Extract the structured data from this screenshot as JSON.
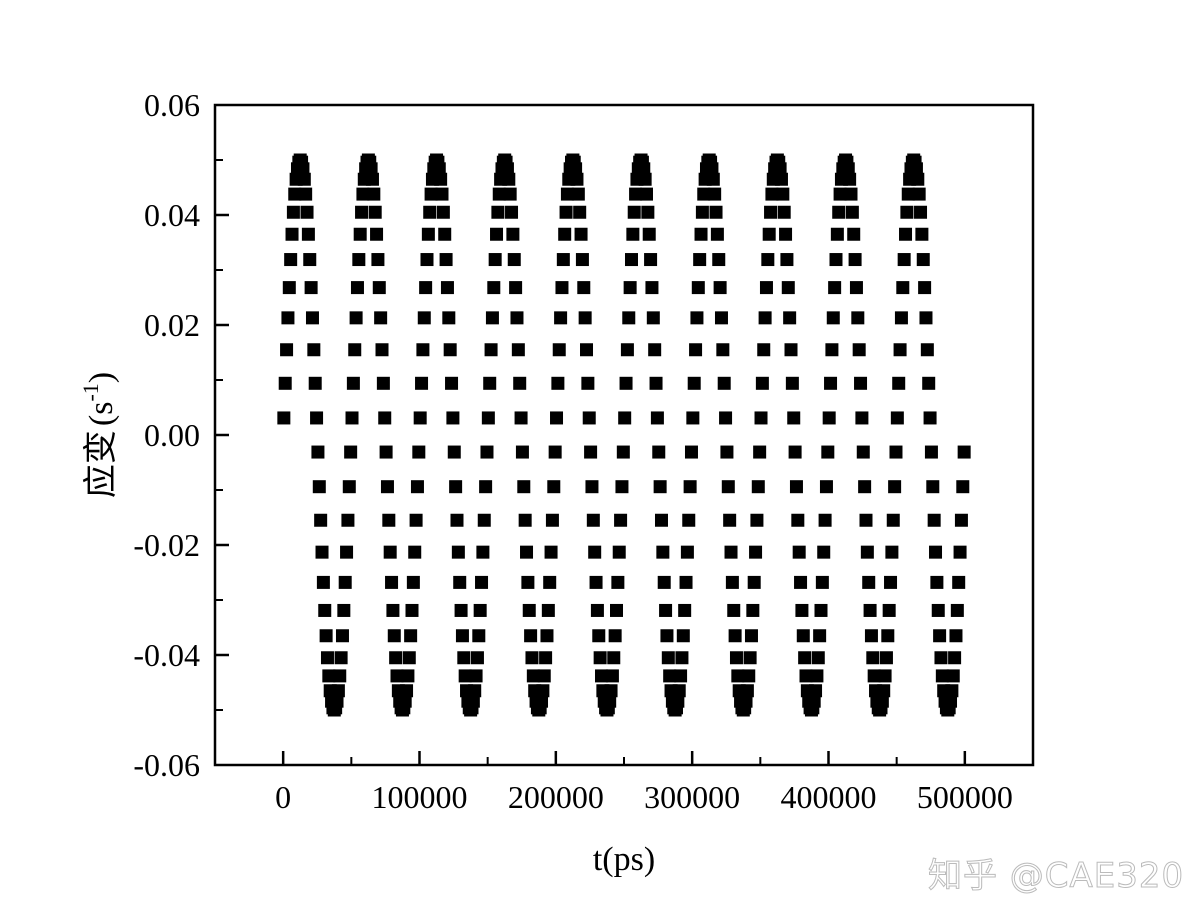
{
  "chart_data": {
    "type": "scatter",
    "title": "",
    "xlabel": "t(ps)",
    "ylabel": "应变",
    "ylabel_unit": "(s",
    "ylabel_unit_sup": "-1",
    "ylabel_unit_close": ")",
    "xlim": [
      -50000,
      550000
    ],
    "ylim": [
      -0.06,
      0.06
    ],
    "xticks": [
      0,
      100000,
      200000,
      300000,
      400000,
      500000
    ],
    "xtick_labels": [
      "0",
      "100000",
      "200000",
      "300000",
      "400000",
      "500000"
    ],
    "yticks": [
      0.06,
      0.04,
      0.02,
      0.0,
      -0.02,
      -0.04,
      -0.06
    ],
    "ytick_labels": [
      "0.06",
      "0.04",
      "0.02",
      "0.00",
      "-0.02",
      "-0.04",
      "-0.06"
    ],
    "grid": false,
    "marker": "square",
    "marker_color": "#000000",
    "series": [
      {
        "x": [
          500,
          1500,
          2500,
          3500,
          4500,
          5500,
          6500,
          7500,
          8500,
          9500,
          10500,
          11500,
          12500,
          13500,
          14500,
          15500,
          16500,
          17500,
          18500,
          19500,
          20500,
          21500,
          22500,
          23500,
          24500,
          25500,
          26500,
          27500,
          28500,
          29500,
          30500,
          31500,
          32500,
          33500,
          34500,
          35500,
          36500,
          37500,
          38500,
          39500,
          40500,
          41500,
          42500,
          43500,
          44500,
          45500,
          46500,
          47500,
          48500,
          49500,
          50500,
          51500,
          52500,
          53500,
          54500,
          55500,
          56500,
          57500,
          58500,
          59500,
          60500,
          61500,
          62500,
          63500,
          64500,
          65500,
          66500,
          67500,
          68500,
          69500,
          70500,
          71500,
          72500,
          73500,
          74500,
          75500,
          76500,
          77500,
          78500,
          79500,
          80500,
          81500,
          82500,
          83500,
          84500,
          85500,
          86500,
          87500,
          88500,
          89500,
          90500,
          91500,
          92500,
          93500,
          94500,
          95500,
          96500,
          97500,
          98500,
          99500,
          100500,
          101500,
          102500,
          103500,
          104500,
          105500,
          106500,
          107500,
          108500,
          109500,
          110500,
          111500,
          112500,
          113500,
          114500,
          115500,
          116500,
          117500,
          118500,
          119500,
          120500,
          121500,
          122500,
          123500,
          124500,
          125500,
          126500,
          127500,
          128500,
          129500,
          130500,
          131500,
          132500,
          133500,
          134500,
          135500,
          136500,
          137500,
          138500,
          139500,
          140500,
          141500,
          142500,
          143500,
          144500,
          145500,
          146500,
          147500,
          148500,
          149500,
          150500,
          151500,
          152500,
          153500,
          154500,
          155500,
          156500,
          157500,
          158500,
          159500,
          160500,
          161500,
          162500,
          163500,
          164500,
          165500,
          166500,
          167500,
          168500,
          169500,
          170500,
          171500,
          172500,
          173500,
          174500,
          175500,
          176500,
          177500,
          178500,
          179500,
          180500,
          181500,
          182500,
          183500,
          184500,
          185500,
          186500,
          187500,
          188500,
          189500,
          190500,
          191500,
          192500,
          193500,
          194500,
          195500,
          196500,
          197500,
          198500,
          199500,
          200500,
          201500,
          202500,
          203500,
          204500,
          205500,
          206500,
          207500,
          208500,
          209500,
          210500,
          211500,
          212500,
          213500,
          214500,
          215500,
          216500,
          217500,
          218500,
          219500,
          220500,
          221500,
          222500,
          223500,
          224500,
          225500,
          226500,
          227500,
          228500,
          229500,
          230500,
          231500,
          232500,
          233500,
          234500,
          235500,
          236500,
          237500,
          238500,
          239500,
          240500,
          241500,
          242500,
          243500,
          244500,
          245500,
          246500,
          247500,
          248500,
          249500,
          250500,
          251500,
          252500,
          253500,
          254500,
          255500,
          256500,
          257500,
          258500,
          259500,
          260500,
          261500,
          262500,
          263500,
          264500,
          265500,
          266500,
          267500,
          268500,
          269500,
          270500,
          271500,
          272500,
          273500,
          274500,
          275500,
          276500,
          277500,
          278500,
          279500,
          280500,
          281500,
          282500,
          283500,
          284500,
          285500,
          286500,
          287500,
          288500,
          289500,
          290500,
          291500,
          292500,
          293500,
          294500,
          295500,
          296500,
          297500,
          298500,
          299500,
          300500,
          301500,
          302500,
          303500,
          304500,
          305500,
          306500,
          307500,
          308500,
          309500,
          310500,
          311500,
          312500,
          313500,
          314500,
          315500,
          316500,
          317500,
          318500,
          319500,
          320500,
          321500,
          322500,
          323500,
          324500,
          325500,
          326500,
          327500,
          328500,
          329500,
          330500,
          331500,
          332500,
          333500,
          334500,
          335500,
          336500,
          337500,
          338500,
          339500,
          340500,
          341500,
          342500,
          343500,
          344500,
          345500,
          346500,
          347500,
          348500,
          349500,
          350500,
          351500,
          352500,
          353500,
          354500,
          355500,
          356500,
          357500,
          358500,
          359500,
          360500,
          361500,
          362500,
          363500,
          364500,
          365500,
          366500,
          367500,
          368500,
          369500,
          370500,
          371500,
          372500,
          373500,
          374500,
          375500,
          376500,
          377500,
          378500,
          379500,
          380500,
          381500,
          382500,
          383500,
          384500,
          385500,
          386500,
          387500,
          388500,
          389500,
          390500,
          391500,
          392500,
          393500,
          394500,
          395500,
          396500,
          397500,
          398500,
          399500,
          400500,
          401500,
          402500,
          403500,
          404500,
          405500,
          406500,
          407500,
          408500,
          409500,
          410500,
          411500,
          412500,
          413500,
          414500,
          415500,
          416500,
          417500,
          418500,
          419500,
          420500,
          421500,
          422500,
          423500,
          424500,
          425500,
          426500,
          427500,
          428500,
          429500,
          430500,
          431500,
          432500,
          433500,
          434500,
          435500,
          436500,
          437500,
          438500,
          439500,
          440500,
          441500,
          442500,
          443500,
          444500,
          445500,
          446500,
          447500,
          448500,
          449500,
          450500,
          451500,
          452500,
          453500,
          454500,
          455500,
          456500,
          457500,
          458500,
          459500,
          460500,
          461500,
          462500,
          463500,
          464500,
          465500,
          466500,
          467500,
          468500,
          469500,
          470500,
          471500,
          472500,
          473500,
          474500,
          475500,
          476500,
          477500,
          478500,
          479500,
          480500,
          481500,
          482500,
          483500,
          484500,
          485500,
          486500,
          487500,
          488500,
          489500,
          490500,
          491500,
          492500,
          493500,
          494500,
          495500,
          496500,
          497500,
          498500,
          499500
        ],
        "y": [
          0.0031,
          0.0094,
          0.0155,
          0.0213,
          0.0268,
          0.0319,
          0.0365,
          0.0405,
          0.0438,
          0.0465,
          0.0484,
          0.0496,
          0.05,
          0.0496,
          0.0484,
          0.0465,
          0.0438,
          0.0405,
          0.0365,
          0.0319,
          0.0268,
          0.0213,
          0.0155,
          0.0094,
          0.0031,
          -0.0031,
          -0.0094,
          -0.0155,
          -0.0213,
          -0.0268,
          -0.0319,
          -0.0365,
          -0.0405,
          -0.0438,
          -0.0465,
          -0.0484,
          -0.0496,
          -0.05,
          -0.0496,
          -0.0484,
          -0.0465,
          -0.0438,
          -0.0405,
          -0.0365,
          -0.0319,
          -0.0268,
          -0.0213,
          -0.0155,
          -0.0094,
          -0.0031,
          0.0031,
          0.0094,
          0.0155,
          0.0213,
          0.0268,
          0.0319,
          0.0365,
          0.0405,
          0.0438,
          0.0465,
          0.0484,
          0.0496,
          0.05,
          0.0496,
          0.0484,
          0.0465,
          0.0438,
          0.0405,
          0.0365,
          0.0319,
          0.0268,
          0.0213,
          0.0155,
          0.0094,
          0.0031,
          -0.0031,
          -0.0094,
          -0.0155,
          -0.0213,
          -0.0268,
          -0.0319,
          -0.0365,
          -0.0405,
          -0.0438,
          -0.0465,
          -0.0484,
          -0.0496,
          -0.05,
          -0.0496,
          -0.0484,
          -0.0465,
          -0.0438,
          -0.0405,
          -0.0365,
          -0.0319,
          -0.0268,
          -0.0213,
          -0.0155,
          -0.0094,
          -0.0031,
          0.0031,
          0.0094,
          0.0155,
          0.0213,
          0.0268,
          0.0319,
          0.0365,
          0.0405,
          0.0438,
          0.0465,
          0.0484,
          0.0496,
          0.05,
          0.0496,
          0.0484,
          0.0465,
          0.0438,
          0.0405,
          0.0365,
          0.0319,
          0.0268,
          0.0213,
          0.0155,
          0.0094,
          0.0031,
          -0.0031,
          -0.0094,
          -0.0155,
          -0.0213,
          -0.0268,
          -0.0319,
          -0.0365,
          -0.0405,
          -0.0438,
          -0.0465,
          -0.0484,
          -0.0496,
          -0.05,
          -0.0496,
          -0.0484,
          -0.0465,
          -0.0438,
          -0.0405,
          -0.0365,
          -0.0319,
          -0.0268,
          -0.0213,
          -0.0155,
          -0.0094,
          -0.0031,
          0.0031,
          0.0094,
          0.0155,
          0.0213,
          0.0268,
          0.0319,
          0.0365,
          0.0405,
          0.0438,
          0.0465,
          0.0484,
          0.0496,
          0.05,
          0.0496,
          0.0484,
          0.0465,
          0.0438,
          0.0405,
          0.0365,
          0.0319,
          0.0268,
          0.0213,
          0.0155,
          0.0094,
          0.0031,
          -0.0031,
          -0.0094,
          -0.0155,
          -0.0213,
          -0.0268,
          -0.0319,
          -0.0365,
          -0.0405,
          -0.0438,
          -0.0465,
          -0.0484,
          -0.0496,
          -0.05,
          -0.0496,
          -0.0484,
          -0.0465,
          -0.0438,
          -0.0405,
          -0.0365,
          -0.0319,
          -0.0268,
          -0.0213,
          -0.0155,
          -0.0094,
          -0.0031,
          0.0031,
          0.0094,
          0.0155,
          0.0213,
          0.0268,
          0.0319,
          0.0365,
          0.0405,
          0.0438,
          0.0465,
          0.0484,
          0.0496,
          0.05,
          0.0496,
          0.0484,
          0.0465,
          0.0438,
          0.0405,
          0.0365,
          0.0319,
          0.0268,
          0.0213,
          0.0155,
          0.0094,
          0.0031,
          -0.0031,
          -0.0094,
          -0.0155,
          -0.0213,
          -0.0268,
          -0.0319,
          -0.0365,
          -0.0405,
          -0.0438,
          -0.0465,
          -0.0484,
          -0.0496,
          -0.05,
          -0.0496,
          -0.0484,
          -0.0465,
          -0.0438,
          -0.0405,
          -0.0365,
          -0.0319,
          -0.0268,
          -0.0213,
          -0.0155,
          -0.0094,
          -0.0031,
          0.0031,
          0.0094,
          0.0155,
          0.0213,
          0.0268,
          0.0319,
          0.0365,
          0.0405,
          0.0438,
          0.0465,
          0.0484,
          0.0496,
          0.05,
          0.0496,
          0.0484,
          0.0465,
          0.0438,
          0.0405,
          0.0365,
          0.0319,
          0.0268,
          0.0213,
          0.0155,
          0.0094,
          0.0031,
          -0.0031,
          -0.0094,
          -0.0155,
          -0.0213,
          -0.0268,
          -0.0319,
          -0.0365,
          -0.0405,
          -0.0438,
          -0.0465,
          -0.0484,
          -0.0496,
          -0.05,
          -0.0496,
          -0.0484,
          -0.0465,
          -0.0438,
          -0.0405,
          -0.0365,
          -0.0319,
          -0.0268,
          -0.0213,
          -0.0155,
          -0.0094,
          -0.0031,
          0.0031,
          0.0094,
          0.0155,
          0.0213,
          0.0268,
          0.0319,
          0.0365,
          0.0405,
          0.0438,
          0.0465,
          0.0484,
          0.0496,
          0.05,
          0.0496,
          0.0484,
          0.0465,
          0.0438,
          0.0405,
          0.0365,
          0.0319,
          0.0268,
          0.0213,
          0.0155,
          0.0094,
          0.0031,
          -0.0031,
          -0.0094,
          -0.0155,
          -0.0213,
          -0.0268,
          -0.0319,
          -0.0365,
          -0.0405,
          -0.0438,
          -0.0465,
          -0.0484,
          -0.0496,
          -0.05,
          -0.0496,
          -0.0484,
          -0.0465,
          -0.0438,
          -0.0405,
          -0.0365,
          -0.0319,
          -0.0268,
          -0.0213,
          -0.0155,
          -0.0094,
          -0.0031,
          0.0031,
          0.0094,
          0.0155,
          0.0213,
          0.0268,
          0.0319,
          0.0365,
          0.0405,
          0.0438,
          0.0465,
          0.0484,
          0.0496,
          0.05,
          0.0496,
          0.0484,
          0.0465,
          0.0438,
          0.0405,
          0.0365,
          0.0319,
          0.0268,
          0.0213,
          0.0155,
          0.0094,
          0.0031,
          -0.0031,
          -0.0094,
          -0.0155,
          -0.0213,
          -0.0268,
          -0.0319,
          -0.0365,
          -0.0405,
          -0.0438,
          -0.0465,
          -0.0484,
          -0.0496,
          -0.05,
          -0.0496,
          -0.0484,
          -0.0465,
          -0.0438,
          -0.0405,
          -0.0365,
          -0.0319,
          -0.0268,
          -0.0213,
          -0.0155,
          -0.0094,
          -0.0031,
          0.0031,
          0.0094,
          0.0155,
          0.0213,
          0.0268,
          0.0319,
          0.0365,
          0.0405,
          0.0438,
          0.0465,
          0.0484,
          0.0496,
          0.05,
          0.0496,
          0.0484,
          0.0465,
          0.0438,
          0.0405,
          0.0365,
          0.0319,
          0.0268,
          0.0213,
          0.0155,
          0.0094,
          0.0031,
          -0.0031,
          -0.0094,
          -0.0155,
          -0.0213,
          -0.0268,
          -0.0319,
          -0.0365,
          -0.0405,
          -0.0438,
          -0.0465,
          -0.0484,
          -0.0496,
          -0.05,
          -0.0496,
          -0.0484,
          -0.0465,
          -0.0438,
          -0.0405,
          -0.0365,
          -0.0319,
          -0.0268,
          -0.0213,
          -0.0155,
          -0.0094,
          -0.0031,
          0.0031,
          0.0094,
          0.0155,
          0.0213,
          0.0268,
          0.0319,
          0.0365,
          0.0405,
          0.0438,
          0.0465,
          0.0484,
          0.0496,
          0.05,
          0.0496,
          0.0484,
          0.0465,
          0.0438,
          0.0405,
          0.0365,
          0.0319,
          0.0268,
          0.0213,
          0.0155,
          0.0094,
          0.0031,
          -0.0031,
          -0.0094,
          -0.0155,
          -0.0213,
          -0.0268,
          -0.0319,
          -0.0365,
          -0.0405,
          -0.0438,
          -0.0465,
          -0.0484,
          -0.0496,
          -0.05,
          -0.0496,
          -0.0484,
          -0.0465,
          -0.0438,
          -0.0405,
          -0.0365,
          -0.0319,
          -0.0268,
          -0.0213,
          -0.0155,
          -0.0094,
          -0.0031
        ]
      }
    ]
  },
  "watermark": "知乎 @CAE320"
}
